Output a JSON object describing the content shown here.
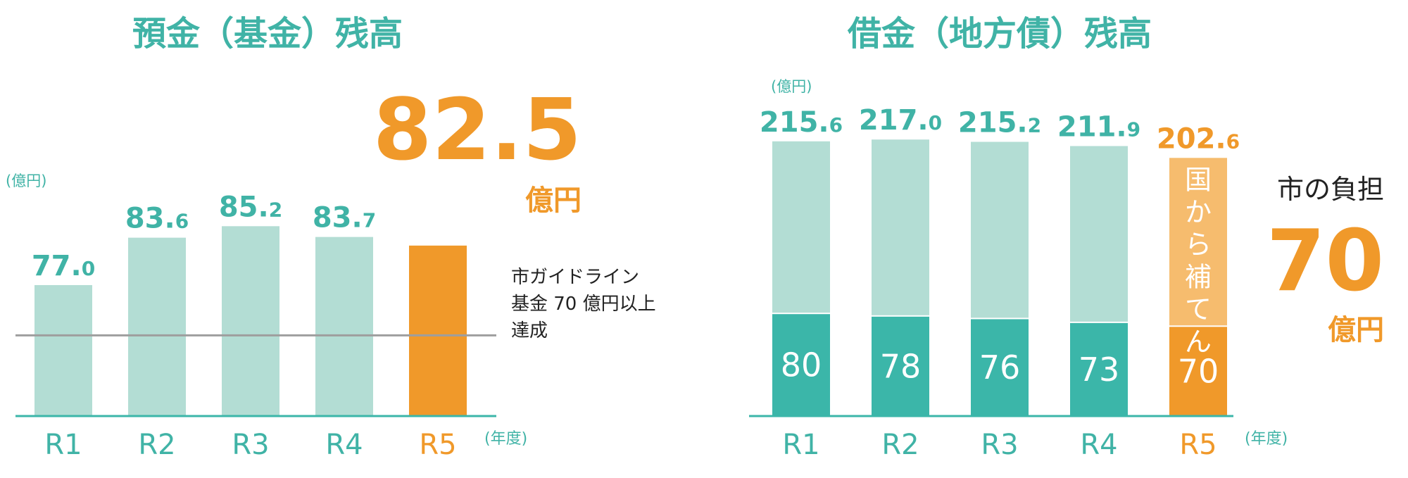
{
  "colors": {
    "teal_text": "#40b3a6",
    "teal_light": "#b3ddd4",
    "teal_dark": "#3bb6a9",
    "orange": "#f0992a",
    "orange_light": "#f6bc6e",
    "guideline": "#9e9e9e",
    "axis": "#3bb6a9",
    "black": "#222222"
  },
  "chart_data": [
    {
      "type": "bar",
      "title": "預金（基金）残高",
      "unit_label": "(億円)",
      "x_unit_label": "(年度)",
      "categories": [
        "R1",
        "R2",
        "R3",
        "R4",
        "R5"
      ],
      "values": [
        77.0,
        83.6,
        85.2,
        83.7,
        82.5
      ],
      "value_labels": [
        {
          "int": "77.",
          "dec": "0"
        },
        {
          "int": "83.",
          "dec": "6"
        },
        {
          "int": "85.",
          "dec": "2"
        },
        {
          "int": "83.",
          "dec": "7"
        }
      ],
      "highlight": {
        "category": "R5",
        "value_text": "82.5",
        "unit_text": "億円"
      },
      "guideline": {
        "value": 70,
        "lines": [
          "市ガイドライン",
          "基金 70 億円以上",
          "達成"
        ]
      }
    },
    {
      "type": "bar",
      "stacked": true,
      "title": "借金（地方債）残高",
      "unit_label": "(億円)",
      "x_unit_label": "(年度)",
      "categories": [
        "R1",
        "R2",
        "R3",
        "R4",
        "R5"
      ],
      "totals": [
        215.6,
        217.0,
        215.2,
        211.9,
        202.6
      ],
      "total_labels": [
        {
          "int": "215.",
          "dec": "6"
        },
        {
          "int": "217.",
          "dec": "0"
        },
        {
          "int": "215.",
          "dec": "2"
        },
        {
          "int": "211.",
          "dec": "9"
        },
        {
          "int": "202.",
          "dec": "6"
        }
      ],
      "series": [
        {
          "name": "市の負担",
          "values": [
            80,
            78,
            76,
            73,
            70
          ]
        },
        {
          "name": "国から補てん",
          "values": [
            135.6,
            139.0,
            139.2,
            138.9,
            132.6
          ]
        }
      ],
      "segment_labels": [
        "80",
        "78",
        "76",
        "73",
        "70"
      ],
      "callout": {
        "label": "市の負担",
        "value_text": "70",
        "unit_text": "億円"
      }
    }
  ]
}
